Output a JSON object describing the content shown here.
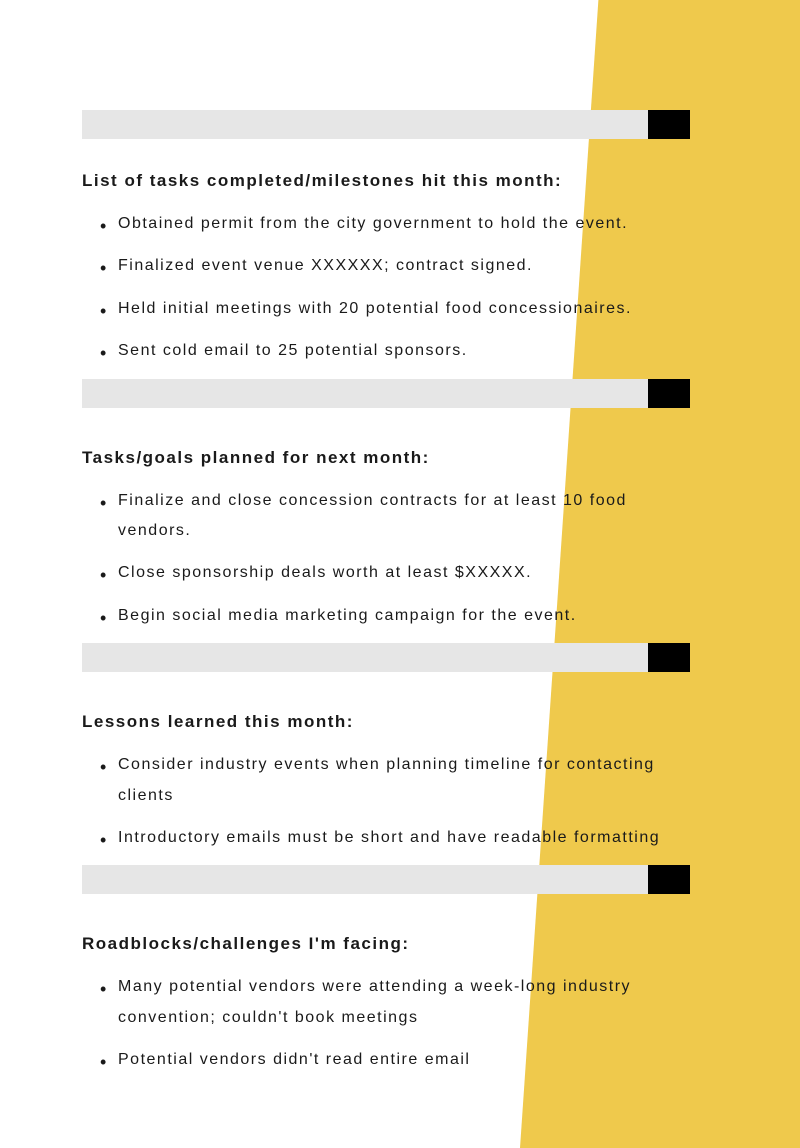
{
  "colors": {
    "accent": "#efc94c",
    "divider_gray": "#e6e6e6",
    "divider_black": "#000000",
    "text": "#1a1a1a",
    "background": "#ffffff"
  },
  "typography": {
    "heading_fontsize": 17,
    "body_fontsize": 16,
    "letter_spacing": 1.5,
    "heading_weight": 700
  },
  "sections": {
    "completed": {
      "heading": "List of tasks completed/milestones hit this month:",
      "items": [
        "Obtained permit from the city government to hold the event.",
        "Finalized event venue XXXXXX; contract signed.",
        "Held initial meetings with 20 potential food concessionaires.",
        "Sent cold email to 25 potential sponsors."
      ]
    },
    "planned": {
      "heading": "Tasks/goals planned for next month:",
      "items": [
        "Finalize and close concession contracts for at least 10 food vendors.",
        "Close sponsorship deals worth at least $XXXXX.",
        "Begin social media marketing campaign for the event."
      ]
    },
    "lessons": {
      "heading": "Lessons learned this month:",
      "items": [
        "Consider industry events when planning timeline for contacting clients",
        "Introductory emails must be short and have readable formatting"
      ]
    },
    "roadblocks": {
      "heading": "Roadblocks/challenges I'm facing:",
      "items": [
        "Many potential vendors were attending a week-long industry convention; couldn't book meetings",
        "Potential vendors didn't read entire email"
      ]
    }
  }
}
